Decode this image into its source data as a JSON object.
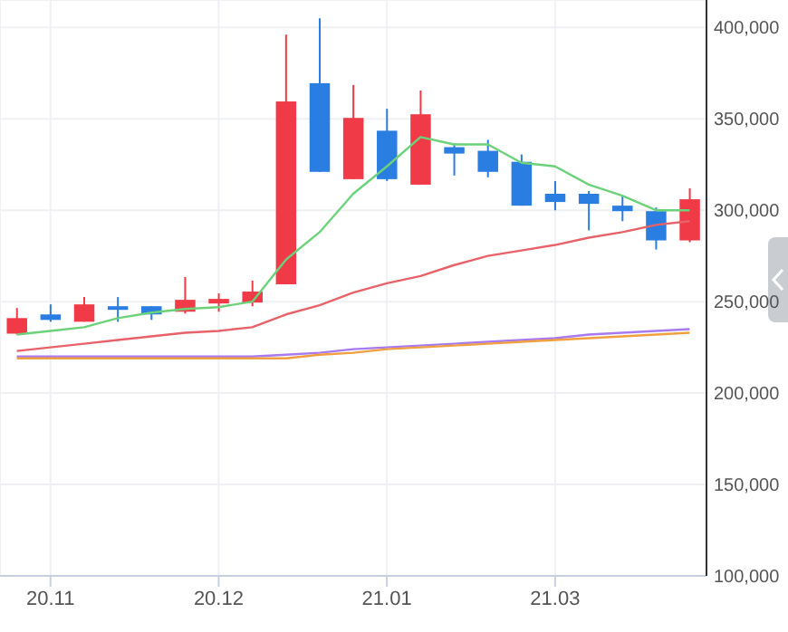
{
  "chart_data": {
    "type": "candlestick",
    "categories": [
      null,
      "20.11",
      null,
      null,
      null,
      null,
      "20.12",
      null,
      null,
      null,
      null,
      "21.01",
      null,
      null,
      null,
      null,
      "21.03",
      null,
      null,
      null,
      null
    ],
    "ohlc": [
      [
        232500,
        246500,
        232000,
        241000
      ],
      [
        243000,
        248500,
        239000,
        240000
      ],
      [
        239000,
        252500,
        239000,
        248500
      ],
      [
        247500,
        252500,
        239000,
        245500
      ],
      [
        247500,
        247500,
        240000,
        243000
      ],
      [
        244500,
        263500,
        243500,
        251000
      ],
      [
        249000,
        254500,
        244500,
        251500
      ],
      [
        249500,
        261500,
        247500,
        255500
      ],
      [
        259500,
        396000,
        259500,
        359500
      ],
      [
        369500,
        405000,
        321000,
        321000
      ],
      [
        317000,
        368500,
        317000,
        350500
      ],
      [
        343500,
        355500,
        316000,
        317000
      ],
      [
        314000,
        365500,
        314000,
        352500
      ],
      [
        334500,
        336500,
        319000,
        331000
      ],
      [
        332500,
        338500,
        318000,
        321000
      ],
      [
        326500,
        330500,
        302500,
        302500
      ],
      [
        309000,
        316000,
        300000,
        304500
      ],
      [
        309000,
        310500,
        289000,
        303500
      ],
      [
        302500,
        307500,
        294000,
        299500
      ],
      [
        299500,
        301500,
        278500,
        283500
      ],
      [
        283500,
        312000,
        282500,
        306000
      ]
    ],
    "colors": [
      "#f03a47",
      "#2a7de1",
      "#f03a47",
      "#2a7de1",
      "#2a7de1",
      "#f03a47",
      "#f03a47",
      "#f03a47",
      "#f03a47",
      "#2a7de1",
      "#f03a47",
      "#2a7de1",
      "#f03a47",
      "#2a7de1",
      "#2a7de1",
      "#2a7de1",
      "#2a7de1",
      "#2a7de1",
      "#2a7de1",
      "#2a7de1",
      "#f03a47"
    ],
    "series": [
      {
        "type": "line",
        "color": "#6cd27a",
        "values": [
          232000,
          234000,
          236000,
          241000,
          244000,
          246000,
          247000,
          250000,
          273000,
          288000,
          309000,
          324000,
          340000,
          336000,
          336000,
          326000,
          324000,
          314000,
          308000,
          300000,
          300000
        ]
      },
      {
        "type": "line",
        "color": "#e8626a",
        "values": [
          223000,
          225000,
          227000,
          229000,
          231000,
          233000,
          234000,
          236000,
          243000,
          248000,
          255000,
          260000,
          264000,
          270000,
          275000,
          278000,
          281000,
          285000,
          288000,
          292000,
          294000
        ]
      },
      {
        "type": "line",
        "color": "#a77af0",
        "values": [
          220000,
          220000,
          220000,
          220000,
          220000,
          220000,
          220000,
          220000,
          221000,
          222000,
          224000,
          225000,
          226000,
          227000,
          228000,
          229000,
          230000,
          232000,
          233000,
          234000,
          235000
        ]
      },
      {
        "type": "line",
        "color": "#f0a040",
        "values": [
          219000,
          219000,
          219000,
          219000,
          219000,
          219000,
          219000,
          219000,
          219000,
          221000,
          222000,
          224000,
          225000,
          226000,
          227000,
          228000,
          229000,
          230000,
          231000,
          232000,
          233000
        ]
      }
    ],
    "ylim": [
      100000,
      415000
    ],
    "yticks": [
      {
        "value": 100000,
        "label": "100,000"
      },
      {
        "value": 150000,
        "label": "150,000"
      },
      {
        "value": 200000,
        "label": "200,000"
      },
      {
        "value": 250000,
        "label": "250,000"
      },
      {
        "value": 300000,
        "label": "300,000"
      },
      {
        "value": 350000,
        "label": "350,000"
      },
      {
        "value": 400000,
        "label": "400,000"
      }
    ],
    "grid": true
  }
}
